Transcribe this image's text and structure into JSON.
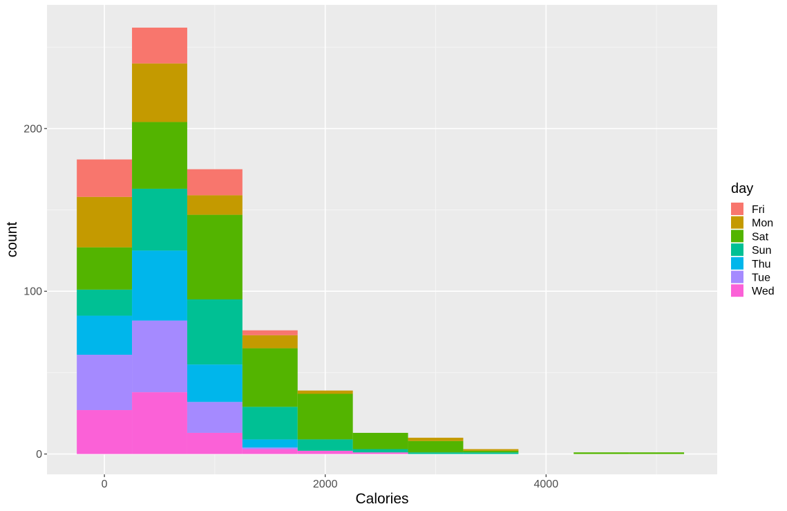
{
  "chart_data": {
    "type": "bar",
    "subtype": "stacked-histogram",
    "xlabel": "Calories",
    "ylabel": "count",
    "bins": [
      [
        -250,
        250
      ],
      [
        250,
        750
      ],
      [
        750,
        1250
      ],
      [
        1250,
        1750
      ],
      [
        1750,
        2250
      ],
      [
        2250,
        2750
      ],
      [
        2750,
        3250
      ],
      [
        3250,
        3750
      ],
      [
        3750,
        4250
      ],
      [
        4250,
        4750
      ],
      [
        4750,
        5250
      ]
    ],
    "xlim": [
      -520,
      5550
    ],
    "ylim": [
      -12.5,
      276
    ],
    "x_ticks": [
      0,
      2000,
      4000
    ],
    "x_tick_labels": [
      "0",
      "2000",
      "4000"
    ],
    "y_ticks": [
      0,
      100,
      200
    ],
    "y_tick_labels": [
      "0",
      "100",
      "200"
    ],
    "stack_order": [
      "Fri",
      "Mon",
      "Sat",
      "Sun",
      "Thu",
      "Tue",
      "Wed"
    ],
    "series": [
      {
        "name": "Fri",
        "color": "#F8766D",
        "values": [
          23,
          22,
          16,
          3,
          0,
          0,
          0,
          0,
          0,
          0,
          0
        ]
      },
      {
        "name": "Mon",
        "color": "#C49A00",
        "values": [
          31,
          36,
          12,
          8,
          2,
          0,
          2,
          1,
          0,
          0,
          0
        ]
      },
      {
        "name": "Sat",
        "color": "#53B400",
        "values": [
          26,
          41,
          52,
          36,
          28,
          10,
          7,
          1,
          0,
          1,
          1
        ]
      },
      {
        "name": "Sun",
        "color": "#00C094",
        "values": [
          16,
          38,
          40,
          20,
          7,
          2,
          1,
          1,
          0,
          0,
          0
        ]
      },
      {
        "name": "Thu",
        "color": "#00B6EB",
        "values": [
          24,
          43,
          23,
          5,
          0,
          0,
          0,
          0,
          0,
          0,
          0
        ]
      },
      {
        "name": "Tue",
        "color": "#A58AFF",
        "values": [
          34,
          44,
          19,
          1,
          0,
          0,
          0,
          0,
          0,
          0,
          0
        ]
      },
      {
        "name": "Wed",
        "color": "#FB61D7",
        "values": [
          27,
          38,
          13,
          3,
          2,
          1,
          0,
          0,
          0,
          0,
          0
        ]
      }
    ],
    "legend": {
      "title": "day",
      "position": "right"
    },
    "grid": true,
    "colors": {
      "panel_background": "#EBEBEB",
      "grid_major": "#FFFFFF",
      "grid_minor": "#F5F5F5"
    }
  }
}
